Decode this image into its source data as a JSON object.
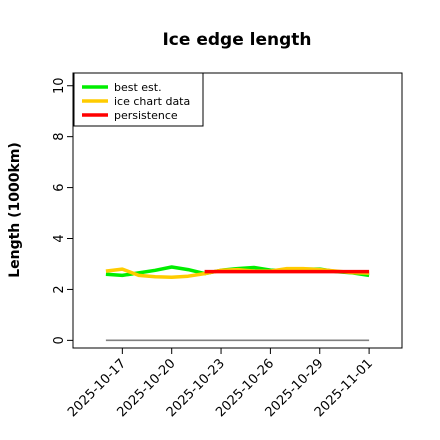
{
  "chart_data": {
    "type": "line",
    "title": "Ice edge length",
    "xlabel": "",
    "ylabel": "Length (1000km)",
    "ylim": [
      -0.3,
      10.5
    ],
    "xlim": [
      "2025-10-14",
      "2025-11-03"
    ],
    "yticks": [
      0,
      2,
      4,
      6,
      8,
      10
    ],
    "xticks": [
      "2025-10-17",
      "2025-10-20",
      "2025-10-23",
      "2025-10-26",
      "2025-10-29",
      "2025-11-01"
    ],
    "grid": false,
    "legend_position": "top-left",
    "reference_line": {
      "x": [
        "2025-10-16",
        "2025-11-01"
      ],
      "y": [
        0,
        0
      ],
      "color": "#808080"
    },
    "series": [
      {
        "name": "best est.",
        "color": "#00ee00",
        "x": [
          "2025-10-16",
          "2025-10-17",
          "2025-10-18",
          "2025-10-19",
          "2025-10-20",
          "2025-10-21",
          "2025-10-22",
          "2025-10-23",
          "2025-10-24",
          "2025-10-25",
          "2025-10-26",
          "2025-10-27",
          "2025-10-28",
          "2025-10-29",
          "2025-10-30",
          "2025-10-31",
          "2025-11-01"
        ],
        "values": [
          2.6,
          2.55,
          2.65,
          2.75,
          2.88,
          2.78,
          2.62,
          2.75,
          2.82,
          2.86,
          2.76,
          2.75,
          2.8,
          2.8,
          2.7,
          2.65,
          2.55
        ]
      },
      {
        "name": "ice chart data",
        "color": "#ffcc00",
        "x": [
          "2025-10-16",
          "2025-10-17",
          "2025-10-18",
          "2025-10-19",
          "2025-10-20",
          "2025-10-21",
          "2025-10-22",
          "2025-10-23",
          "2025-10-24",
          "2025-10-25",
          "2025-10-26",
          "2025-10-27",
          "2025-10-28",
          "2025-10-29",
          "2025-10-30",
          "2025-10-31",
          "2025-11-01"
        ],
        "values": [
          2.72,
          2.8,
          2.55,
          2.5,
          2.48,
          2.52,
          2.62,
          2.75,
          2.78,
          2.72,
          2.72,
          2.82,
          2.82,
          2.78,
          2.72,
          2.66,
          2.64
        ]
      },
      {
        "name": "persistence",
        "color": "#ff0000",
        "x": [
          "2025-10-22",
          "2025-10-23",
          "2025-10-24",
          "2025-10-25",
          "2025-10-26",
          "2025-10-27",
          "2025-10-28",
          "2025-10-29",
          "2025-10-30",
          "2025-10-31",
          "2025-11-01"
        ],
        "values": [
          2.7,
          2.7,
          2.7,
          2.7,
          2.7,
          2.7,
          2.7,
          2.7,
          2.7,
          2.7,
          2.7
        ]
      }
    ]
  }
}
